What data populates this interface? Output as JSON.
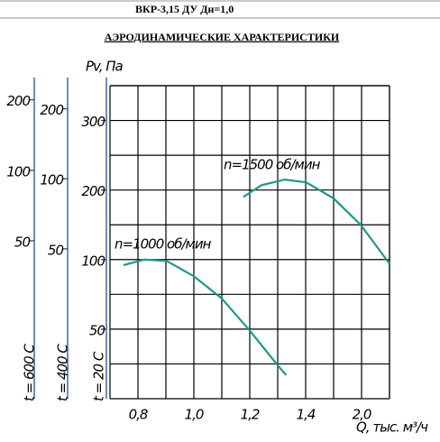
{
  "header": "ВКР-3,15 ДУ Дн=1,0",
  "chart_data": {
    "type": "line",
    "title": "АЭРОДИНАМИЧЕСКИЕ ХАРАКТЕРИСТИКИ",
    "ylabel": "Pv, Па",
    "xlabel": "Q, тыс. м³/ч",
    "scale": "tick-spaced",
    "xlim": [
      0.7,
      2.3
    ],
    "xticks": [
      {
        "value": 0.8,
        "label": "0,8"
      },
      {
        "value": 1.0,
        "label": "1,0"
      },
      {
        "value": 1.2,
        "label": "1,2"
      },
      {
        "value": 1.4,
        "label": "1,4"
      },
      {
        "value": 2.0,
        "label": "2,0"
      }
    ],
    "ylim": [
      0,
      350
    ],
    "yticks": [
      50,
      100,
      200,
      300
    ],
    "y_axis_label": "t = 20 C",
    "extra_axes": [
      {
        "label": "t = 600 C",
        "ylim": [
          -62,
          220
        ],
        "yticks": [
          50,
          100,
          200
        ]
      },
      {
        "label": "t = 400 C",
        "ylim": [
          -57,
          233
        ],
        "yticks": [
          50,
          100,
          200
        ]
      }
    ],
    "grid": true,
    "series": [
      {
        "name": "n=1000 об/мин",
        "color": "#1b9a8c",
        "x": [
          0.748,
          0.823,
          0.903,
          1.0,
          1.1,
          1.2,
          1.3,
          1.33
        ],
        "values": [
          96,
          100,
          99,
          88,
          72,
          49,
          24,
          17
        ]
      },
      {
        "name": "n=1500 об/мин",
        "color": "#1b9a8c",
        "x": [
          1.177,
          1.242,
          1.326,
          1.406,
          1.7,
          1.99,
          2.3
        ],
        "values": [
          190,
          207,
          215,
          211,
          188,
          150,
          97
        ]
      }
    ]
  }
}
